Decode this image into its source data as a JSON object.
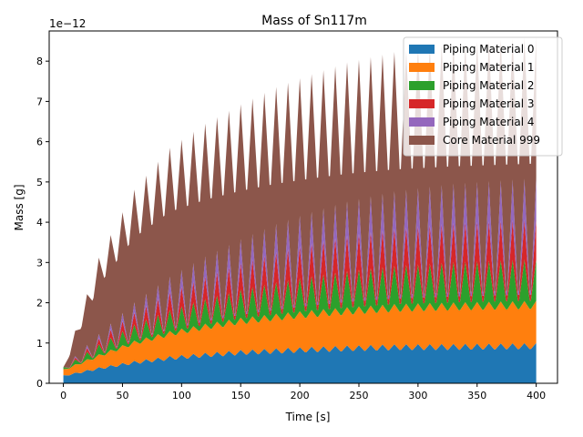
{
  "chart_data": {
    "type": "area",
    "stacked": true,
    "title": "Mass of Sn117m",
    "xlabel": "Time [s]",
    "ylabel": "Mass [g]",
    "y_offset_label": "1e−12",
    "xlim": [
      -12,
      418
    ],
    "ylim": [
      0,
      8.75
    ],
    "x_ticks": [
      0,
      50,
      100,
      150,
      200,
      250,
      300,
      350,
      400
    ],
    "y_ticks": [
      0,
      1,
      2,
      3,
      4,
      5,
      6,
      7,
      8
    ],
    "legend_position": "top-right",
    "cycle_period": 10,
    "x_range": [
      0,
      400
    ],
    "series": [
      {
        "name": "Piping Material 0",
        "color": "#1f77b4",
        "peak_values": [
          0.2,
          0.4,
          0.56,
          0.68,
          0.76,
          0.83,
          0.87,
          0.91,
          0.94,
          0.97,
          0.98,
          1.0
        ],
        "trough_ratio": 0.85
      },
      {
        "name": "Piping Material 1",
        "color": "#ff7f0e",
        "peak_values": [
          0.15,
          0.32,
          0.5,
          0.62,
          0.72,
          0.8,
          0.86,
          0.91,
          0.95,
          1.0,
          1.03,
          1.05
        ],
        "trough_ratio": 0.95
      },
      {
        "name": "Piping Material 2",
        "color": "#2ca02c",
        "peak_values": [
          0.05,
          0.25,
          0.4,
          0.52,
          0.62,
          0.7,
          0.78,
          0.84,
          0.9,
          0.95,
          1.0,
          1.03
        ],
        "trough_ratio": 0.2
      },
      {
        "name": "Piping Material 3",
        "color": "#d62728",
        "peak_values": [
          0.0,
          0.15,
          0.3,
          0.45,
          0.55,
          0.65,
          0.75,
          0.82,
          0.88,
          0.93,
          0.97,
          1.0
        ],
        "trough_ratio": 0.15
      },
      {
        "name": "Piping Material 4",
        "color": "#9467bd",
        "peak_values": [
          0.0,
          0.1,
          0.25,
          0.38,
          0.5,
          0.6,
          0.7,
          0.78,
          0.85,
          0.92,
          0.98,
          1.02
        ],
        "trough_ratio": 0.1
      },
      {
        "name": "Core Material 999",
        "color": "#8c564b",
        "peak_values": [
          0.0,
          1.9,
          2.8,
          3.2,
          3.3,
          3.35,
          3.4,
          3.42,
          3.45,
          3.46,
          3.48,
          3.5
        ],
        "trough_ratio": 0.9
      }
    ],
    "peak_x": [
      0,
      30,
      60,
      90,
      120,
      150,
      180,
      210,
      240,
      280,
      330,
      400
    ]
  }
}
